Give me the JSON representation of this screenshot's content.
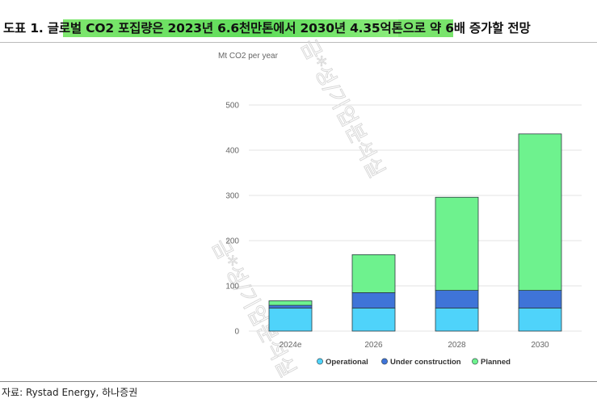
{
  "header": {
    "title": "도표 1. 글로벌 CO2 포집량은 2023년 6.6천만톤에서 2030년 4.35억톤으로 약 6배 증가할 전망"
  },
  "footer": {
    "source": "자료: Rystad Energy, 하나증권"
  },
  "watermark": {
    "text": "금*성/기업분석실"
  },
  "colors": {
    "highlight": "#6ee066",
    "operational": "#4fd3fa",
    "under_construction": "#3f74d8",
    "planned": "#6ef28e"
  },
  "chart_data": {
    "type": "bar",
    "stacked": true,
    "unit_label": "Mt CO2 per year",
    "categories": [
      "2024e",
      "2026",
      "2028",
      "2030"
    ],
    "series": [
      {
        "name": "Operational",
        "values": [
          51,
          51,
          51,
          51
        ]
      },
      {
        "name": "Under construction",
        "values": [
          6,
          34,
          39,
          39
        ]
      },
      {
        "name": "Planned",
        "values": [
          10,
          84,
          206,
          346
        ]
      }
    ],
    "ylim": [
      0,
      500
    ],
    "yticks": [
      0,
      100,
      200,
      300,
      400,
      500
    ],
    "grid": true,
    "legend_position": "bottom"
  }
}
